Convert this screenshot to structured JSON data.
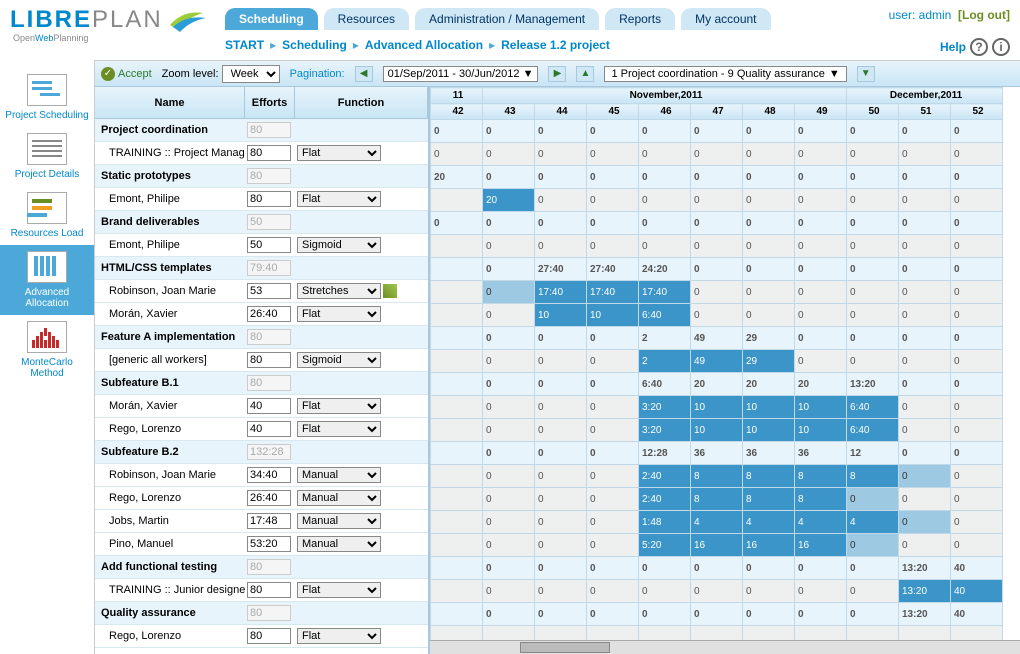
{
  "logo": {
    "part1": "LIBRE",
    "part2": "PLAN",
    "sub1": "Open",
    "sub2": "Web",
    "sub3": "Planning"
  },
  "user": {
    "label": "user:",
    "name": "admin",
    "logout": "[Log out]"
  },
  "tabs": [
    {
      "label": "Scheduling",
      "active": true
    },
    {
      "label": "Resources"
    },
    {
      "label": "Administration / Management"
    },
    {
      "label": "Reports"
    },
    {
      "label": "My account"
    }
  ],
  "breadcrumb": [
    "START",
    "Scheduling",
    "Advanced Allocation",
    "Release 1.2 project"
  ],
  "help": "Help",
  "toolbar": {
    "accept": "Accept",
    "zoom_label": "Zoom level:",
    "zoom_value": "Week",
    "pagination_label": "Pagination:",
    "daterange": "01/Sep/2011 - 30/Jun/2012",
    "project_span": "1 Project coordination - 9 Quality assurance"
  },
  "sidebar": [
    {
      "label": "Project Scheduling",
      "icon": "gantt"
    },
    {
      "label": "Project Details",
      "icon": "details"
    },
    {
      "label": "Resources Load",
      "icon": "resources"
    },
    {
      "label": "Advanced Allocation",
      "icon": "adv",
      "active": true
    },
    {
      "label": "MonteCarlo Method",
      "icon": "monte"
    }
  ],
  "left_headers": {
    "name": "Name",
    "efforts": "Efforts",
    "function": "Function"
  },
  "timeline": {
    "year_label": "11",
    "months": [
      {
        "label": "",
        "span": 1
      },
      {
        "label": "November,2011",
        "span": 7
      },
      {
        "label": "December,2011",
        "span": 4
      }
    ],
    "weeks": [
      "42",
      "43",
      "44",
      "45",
      "46",
      "47",
      "48",
      "49",
      "50",
      "51",
      "52"
    ]
  },
  "rows": [
    {
      "type": "task",
      "name": "Project coordination",
      "eff": "80",
      "cells": [
        {
          "v": "0"
        },
        {
          "v": "0"
        },
        {
          "v": "0"
        },
        {
          "v": "0"
        },
        {
          "v": "0"
        },
        {
          "v": "0"
        },
        {
          "v": "0"
        },
        {
          "v": "0"
        },
        {
          "v": "0"
        },
        {
          "v": "0"
        },
        {
          "v": "0"
        }
      ]
    },
    {
      "type": "res",
      "name": "TRAINING :: Project Manag",
      "eff": "80",
      "fn": "Flat",
      "cells": [
        {
          "v": "0"
        },
        {
          "v": "0"
        },
        {
          "v": "0"
        },
        {
          "v": "0"
        },
        {
          "v": "0"
        },
        {
          "v": "0"
        },
        {
          "v": "0"
        },
        {
          "v": "0"
        },
        {
          "v": "0"
        },
        {
          "v": "0"
        },
        {
          "v": "0"
        }
      ]
    },
    {
      "type": "task",
      "name": "Static prototypes",
      "eff": "80",
      "cells": [
        {
          "v": "20"
        },
        {
          "v": "0"
        },
        {
          "v": "0"
        },
        {
          "v": "0"
        },
        {
          "v": "0"
        },
        {
          "v": "0"
        },
        {
          "v": "0"
        },
        {
          "v": "0"
        },
        {
          "v": "0"
        },
        {
          "v": "0"
        },
        {
          "v": "0"
        }
      ]
    },
    {
      "type": "res",
      "name": "Emont, Philipe",
      "eff": "80",
      "fn": "Flat",
      "cells": [
        {
          "v": ""
        },
        {
          "v": "20",
          "c": "fill"
        },
        {
          "v": "0"
        },
        {
          "v": "0"
        },
        {
          "v": "0"
        },
        {
          "v": "0"
        },
        {
          "v": "0"
        },
        {
          "v": "0"
        },
        {
          "v": "0"
        },
        {
          "v": "0"
        },
        {
          "v": "0"
        }
      ]
    },
    {
      "type": "task",
      "name": "Brand deliverables",
      "eff": "50",
      "cells": [
        {
          "v": "0"
        },
        {
          "v": "0"
        },
        {
          "v": "0"
        },
        {
          "v": "0"
        },
        {
          "v": "0"
        },
        {
          "v": "0"
        },
        {
          "v": "0"
        },
        {
          "v": "0"
        },
        {
          "v": "0"
        },
        {
          "v": "0"
        },
        {
          "v": "0"
        }
      ]
    },
    {
      "type": "res",
      "name": "Emont, Philipe",
      "eff": "50",
      "fn": "Sigmoid",
      "cells": [
        {
          "v": ""
        },
        {
          "v": "0"
        },
        {
          "v": "0"
        },
        {
          "v": "0"
        },
        {
          "v": "0"
        },
        {
          "v": "0"
        },
        {
          "v": "0"
        },
        {
          "v": "0"
        },
        {
          "v": "0"
        },
        {
          "v": "0"
        },
        {
          "v": "0"
        }
      ]
    },
    {
      "type": "task",
      "name": "HTML/CSS templates",
      "eff": "79:40",
      "cells": [
        {
          "v": ""
        },
        {
          "v": "0"
        },
        {
          "v": "27:40"
        },
        {
          "v": "27:40"
        },
        {
          "v": "24:20"
        },
        {
          "v": "0"
        },
        {
          "v": "0"
        },
        {
          "v": "0"
        },
        {
          "v": "0"
        },
        {
          "v": "0"
        },
        {
          "v": "0"
        }
      ]
    },
    {
      "type": "res",
      "name": "Robinson, Joan Marie",
      "eff": "53",
      "fn": "Stretches",
      "fn_edit": true,
      "cells": [
        {
          "v": ""
        },
        {
          "v": "0",
          "c": "fill-lt"
        },
        {
          "v": "17:40",
          "c": "fill"
        },
        {
          "v": "17:40",
          "c": "fill"
        },
        {
          "v": "17:40",
          "c": "fill"
        },
        {
          "v": "0"
        },
        {
          "v": "0"
        },
        {
          "v": "0"
        },
        {
          "v": "0"
        },
        {
          "v": "0"
        },
        {
          "v": "0"
        }
      ]
    },
    {
      "type": "res",
      "name": "Morán, Xavier",
      "eff": "26:40",
      "fn": "Flat",
      "cells": [
        {
          "v": ""
        },
        {
          "v": "0"
        },
        {
          "v": "10",
          "c": "fill"
        },
        {
          "v": "10",
          "c": "fill"
        },
        {
          "v": "6:40",
          "c": "fill"
        },
        {
          "v": "0"
        },
        {
          "v": "0"
        },
        {
          "v": "0"
        },
        {
          "v": "0"
        },
        {
          "v": "0"
        },
        {
          "v": "0"
        }
      ]
    },
    {
      "type": "task",
      "name": "Feature A implementation",
      "eff": "80",
      "cells": [
        {
          "v": ""
        },
        {
          "v": "0"
        },
        {
          "v": "0"
        },
        {
          "v": "0"
        },
        {
          "v": "2"
        },
        {
          "v": "49"
        },
        {
          "v": "29"
        },
        {
          "v": "0"
        },
        {
          "v": "0"
        },
        {
          "v": "0"
        },
        {
          "v": "0"
        }
      ]
    },
    {
      "type": "res",
      "name": "[generic all workers]",
      "eff": "80",
      "fn": "Sigmoid",
      "cells": [
        {
          "v": ""
        },
        {
          "v": "0"
        },
        {
          "v": "0"
        },
        {
          "v": "0"
        },
        {
          "v": "2",
          "c": "fill"
        },
        {
          "v": "49",
          "c": "fill"
        },
        {
          "v": "29",
          "c": "fill"
        },
        {
          "v": "0"
        },
        {
          "v": "0"
        },
        {
          "v": "0"
        },
        {
          "v": "0"
        }
      ]
    },
    {
      "type": "task",
      "name": "Subfeature B.1",
      "eff": "80",
      "cells": [
        {
          "v": ""
        },
        {
          "v": "0"
        },
        {
          "v": "0"
        },
        {
          "v": "0"
        },
        {
          "v": "6:40"
        },
        {
          "v": "20"
        },
        {
          "v": "20"
        },
        {
          "v": "20"
        },
        {
          "v": "13:20"
        },
        {
          "v": "0"
        },
        {
          "v": "0"
        }
      ]
    },
    {
      "type": "res",
      "name": "Morán, Xavier",
      "eff": "40",
      "fn": "Flat",
      "cells": [
        {
          "v": ""
        },
        {
          "v": "0"
        },
        {
          "v": "0"
        },
        {
          "v": "0"
        },
        {
          "v": "3:20",
          "c": "fill"
        },
        {
          "v": "10",
          "c": "fill"
        },
        {
          "v": "10",
          "c": "fill"
        },
        {
          "v": "10",
          "c": "fill"
        },
        {
          "v": "6:40",
          "c": "fill"
        },
        {
          "v": "0"
        },
        {
          "v": "0"
        }
      ]
    },
    {
      "type": "res",
      "name": "Rego, Lorenzo",
      "eff": "40",
      "fn": "Flat",
      "cells": [
        {
          "v": ""
        },
        {
          "v": "0"
        },
        {
          "v": "0"
        },
        {
          "v": "0"
        },
        {
          "v": "3:20",
          "c": "fill"
        },
        {
          "v": "10",
          "c": "fill"
        },
        {
          "v": "10",
          "c": "fill"
        },
        {
          "v": "10",
          "c": "fill"
        },
        {
          "v": "6:40",
          "c": "fill"
        },
        {
          "v": "0"
        },
        {
          "v": "0"
        }
      ]
    },
    {
      "type": "task",
      "name": "Subfeature B.2",
      "eff": "132:28",
      "cells": [
        {
          "v": ""
        },
        {
          "v": "0"
        },
        {
          "v": "0"
        },
        {
          "v": "0"
        },
        {
          "v": "12:28"
        },
        {
          "v": "36"
        },
        {
          "v": "36"
        },
        {
          "v": "36"
        },
        {
          "v": "12"
        },
        {
          "v": "0"
        },
        {
          "v": "0"
        }
      ]
    },
    {
      "type": "res",
      "name": "Robinson, Joan Marie",
      "eff": "34:40",
      "fn": "Manual",
      "cells": [
        {
          "v": ""
        },
        {
          "v": "0"
        },
        {
          "v": "0"
        },
        {
          "v": "0"
        },
        {
          "v": "2:40",
          "c": "fill"
        },
        {
          "v": "8",
          "c": "fill"
        },
        {
          "v": "8",
          "c": "fill"
        },
        {
          "v": "8",
          "c": "fill"
        },
        {
          "v": "8",
          "c": "fill"
        },
        {
          "v": "0",
          "c": "fill-lt"
        },
        {
          "v": "0"
        }
      ]
    },
    {
      "type": "res",
      "name": "Rego, Lorenzo",
      "eff": "26:40",
      "fn": "Manual",
      "cells": [
        {
          "v": ""
        },
        {
          "v": "0"
        },
        {
          "v": "0"
        },
        {
          "v": "0"
        },
        {
          "v": "2:40",
          "c": "fill"
        },
        {
          "v": "8",
          "c": "fill"
        },
        {
          "v": "8",
          "c": "fill"
        },
        {
          "v": "8",
          "c": "fill"
        },
        {
          "v": "0",
          "c": "fill-lt"
        },
        {
          "v": "0"
        },
        {
          "v": "0"
        }
      ]
    },
    {
      "type": "res",
      "name": "Jobs, Martin",
      "eff": "17:48",
      "fn": "Manual",
      "cells": [
        {
          "v": ""
        },
        {
          "v": "0"
        },
        {
          "v": "0"
        },
        {
          "v": "0"
        },
        {
          "v": "1:48",
          "c": "fill"
        },
        {
          "v": "4",
          "c": "fill"
        },
        {
          "v": "4",
          "c": "fill"
        },
        {
          "v": "4",
          "c": "fill"
        },
        {
          "v": "4",
          "c": "fill"
        },
        {
          "v": "0",
          "c": "fill-lt"
        },
        {
          "v": "0"
        }
      ]
    },
    {
      "type": "res",
      "name": "Pino, Manuel",
      "eff": "53:20",
      "fn": "Manual",
      "cells": [
        {
          "v": ""
        },
        {
          "v": "0"
        },
        {
          "v": "0"
        },
        {
          "v": "0"
        },
        {
          "v": "5:20",
          "c": "fill"
        },
        {
          "v": "16",
          "c": "fill"
        },
        {
          "v": "16",
          "c": "fill"
        },
        {
          "v": "16",
          "c": "fill"
        },
        {
          "v": "0",
          "c": "fill-lt"
        },
        {
          "v": "0"
        },
        {
          "v": "0"
        }
      ]
    },
    {
      "type": "task",
      "name": "Add functional testing",
      "eff": "80",
      "cells": [
        {
          "v": ""
        },
        {
          "v": "0"
        },
        {
          "v": "0"
        },
        {
          "v": "0"
        },
        {
          "v": "0"
        },
        {
          "v": "0"
        },
        {
          "v": "0"
        },
        {
          "v": "0"
        },
        {
          "v": "0"
        },
        {
          "v": "13:20"
        },
        {
          "v": "40"
        }
      ]
    },
    {
      "type": "res",
      "name": "TRAINING :: Junior designe",
      "eff": "80",
      "fn": "Flat",
      "cells": [
        {
          "v": ""
        },
        {
          "v": "0"
        },
        {
          "v": "0"
        },
        {
          "v": "0"
        },
        {
          "v": "0"
        },
        {
          "v": "0"
        },
        {
          "v": "0"
        },
        {
          "v": "0"
        },
        {
          "v": "0"
        },
        {
          "v": "13:20",
          "c": "fill"
        },
        {
          "v": "40",
          "c": "fill"
        }
      ]
    },
    {
      "type": "task",
      "name": "Quality assurance",
      "eff": "80",
      "cells": [
        {
          "v": ""
        },
        {
          "v": "0"
        },
        {
          "v": "0"
        },
        {
          "v": "0"
        },
        {
          "v": "0"
        },
        {
          "v": "0"
        },
        {
          "v": "0"
        },
        {
          "v": "0"
        },
        {
          "v": "0"
        },
        {
          "v": "13:20"
        },
        {
          "v": "40"
        }
      ]
    },
    {
      "type": "res",
      "name": "Rego, Lorenzo",
      "eff": "80",
      "fn": "Flat",
      "cells": [
        {
          "v": ""
        },
        {
          "v": ""
        },
        {
          "v": ""
        },
        {
          "v": ""
        },
        {
          "v": ""
        },
        {
          "v": ""
        },
        {
          "v": ""
        },
        {
          "v": ""
        },
        {
          "v": ""
        },
        {
          "v": ""
        },
        {
          "v": ""
        }
      ]
    }
  ],
  "fn_options": [
    "Flat",
    "Sigmoid",
    "Stretches",
    "Manual"
  ]
}
